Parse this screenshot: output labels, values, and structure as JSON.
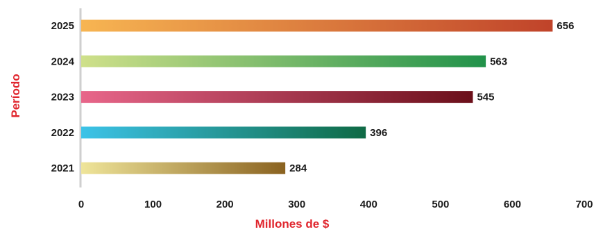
{
  "chart_data": {
    "type": "bar",
    "orientation": "horizontal",
    "categories": [
      "2025",
      "2024",
      "2023",
      "2022",
      "2021"
    ],
    "values": [
      656,
      563,
      545,
      396,
      284
    ],
    "value_labels": [
      "656",
      "563",
      "545",
      "396",
      "284"
    ],
    "xlabel": "Millones de $",
    "ylabel": "Período",
    "xlim": [
      0,
      700
    ],
    "xticks": [
      0,
      100,
      200,
      300,
      400,
      500,
      600,
      700
    ],
    "xtick_labels": [
      "0",
      "100",
      "200",
      "300",
      "400",
      "500",
      "600",
      "700"
    ],
    "grid": false,
    "legend": "none",
    "bar_gradients": [
      [
        "#f7b552",
        "#c0432a"
      ],
      [
        "#cfe08a",
        "#21924a"
      ],
      [
        "#e8668a",
        "#6b0f1a"
      ],
      [
        "#3cc3e8",
        "#0f6a45"
      ],
      [
        "#efe59a",
        "#8a6220"
      ]
    ],
    "axis_title_color": "#e0262e",
    "axis_line_color": "#cfcfcf"
  }
}
